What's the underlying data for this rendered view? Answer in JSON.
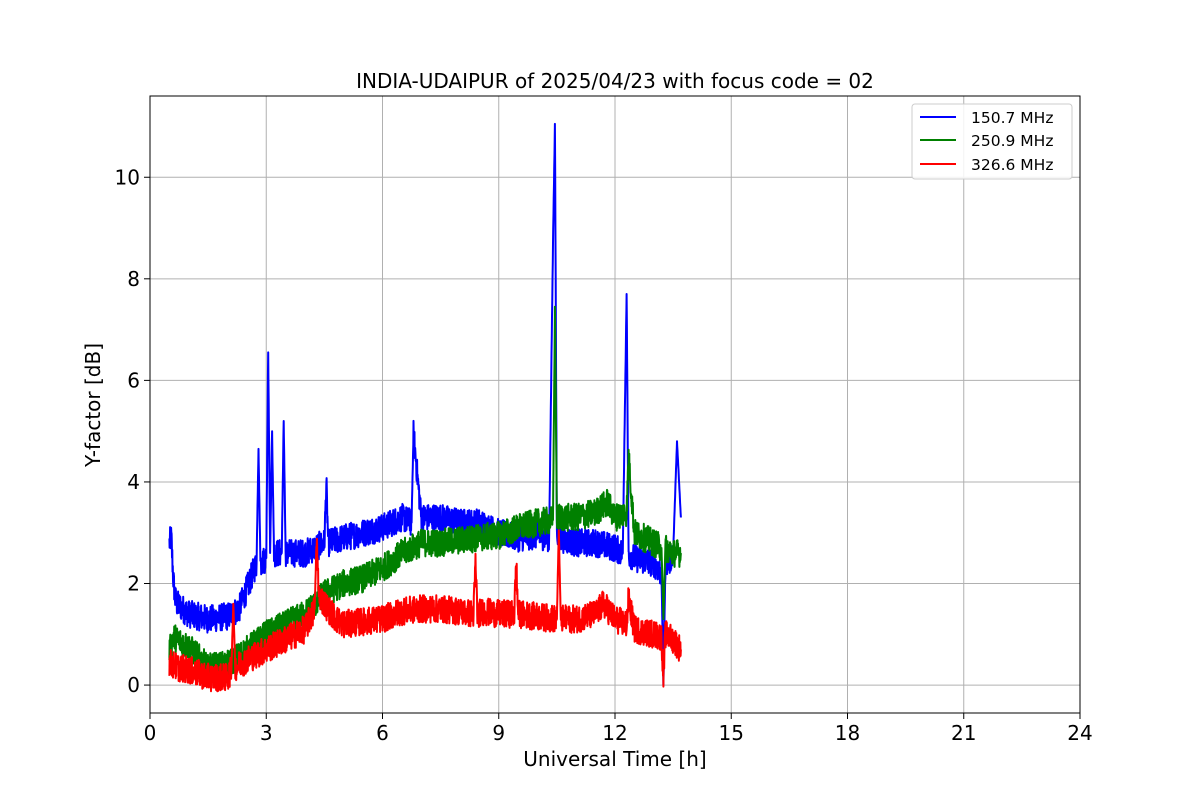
{
  "chart_data": {
    "type": "line",
    "title": "INDIA-UDAIPUR of 2025/04/23 with focus code = 02",
    "xlabel": "Universal Time [h]",
    "ylabel": "Y-factor [dB]",
    "xlim": [
      0,
      24
    ],
    "ylim": [
      -0.55,
      11.6
    ],
    "x_ticks": [
      0,
      3,
      6,
      9,
      12,
      15,
      18,
      21,
      24
    ],
    "x_tick_labels": [
      "0",
      "3",
      "6",
      "9",
      "12",
      "15",
      "18",
      "21",
      "24"
    ],
    "y_ticks": [
      0,
      2,
      4,
      6,
      8,
      10
    ],
    "y_tick_labels": [
      "0",
      "2",
      "4",
      "6",
      "8",
      "10"
    ],
    "grid": true,
    "legend_position": "top-right",
    "series": [
      {
        "name": "150.7 MHz",
        "color": "#0000ff",
        "x": [
          0.5,
          0.55,
          0.6,
          0.65,
          0.7,
          1.0,
          1.5,
          2.0,
          2.3,
          2.6,
          2.75,
          2.8,
          2.85,
          3.0,
          3.05,
          3.1,
          3.15,
          3.2,
          3.4,
          3.45,
          3.5,
          4.0,
          4.5,
          4.55,
          4.6,
          5.0,
          5.5,
          6.0,
          6.5,
          6.75,
          6.8,
          7.0,
          7.5,
          8.0,
          8.5,
          9.0,
          9.5,
          10.0,
          10.3,
          10.4,
          10.45,
          10.5,
          10.55,
          11.0,
          11.5,
          12.0,
          12.2,
          12.3,
          12.35,
          12.5,
          13.0,
          13.2,
          13.25,
          13.3,
          13.5,
          13.6,
          13.7
        ],
        "y": [
          2.8,
          2.9,
          2.1,
          1.7,
          1.6,
          1.4,
          1.3,
          1.35,
          1.5,
          2.1,
          2.4,
          4.65,
          2.4,
          2.5,
          6.55,
          2.6,
          5.0,
          2.6,
          2.6,
          5.2,
          2.6,
          2.6,
          2.8,
          3.95,
          2.8,
          2.9,
          3.0,
          3.1,
          3.3,
          3.2,
          4.95,
          3.3,
          3.3,
          3.2,
          3.2,
          3.0,
          2.9,
          2.95,
          2.9,
          8.7,
          11.05,
          3.0,
          2.9,
          2.8,
          2.8,
          2.7,
          2.6,
          7.7,
          2.6,
          2.5,
          2.4,
          2.2,
          0.0,
          2.3,
          2.6,
          4.8,
          3.3
        ]
      },
      {
        "name": "250.9 MHz",
        "color": "#008000",
        "x": [
          0.5,
          0.6,
          1.0,
          1.5,
          2.0,
          2.5,
          3.0,
          3.5,
          4.0,
          4.5,
          5.0,
          5.5,
          6.0,
          6.5,
          7.0,
          7.5,
          8.0,
          8.5,
          9.0,
          9.5,
          10.0,
          10.4,
          10.45,
          10.5,
          10.55,
          11.0,
          11.5,
          11.8,
          12.0,
          12.3,
          12.35,
          12.5,
          13.0,
          13.2,
          13.25,
          13.3,
          13.5,
          13.7
        ],
        "y": [
          0.65,
          0.95,
          0.75,
          0.35,
          0.4,
          0.7,
          1.0,
          1.2,
          1.4,
          1.8,
          2.0,
          2.1,
          2.3,
          2.6,
          2.8,
          2.8,
          2.85,
          2.9,
          2.95,
          3.1,
          3.2,
          3.25,
          7.45,
          3.3,
          3.3,
          3.3,
          3.4,
          3.6,
          3.3,
          3.4,
          4.5,
          3.0,
          2.8,
          2.7,
          1.3,
          2.7,
          2.6,
          2.6
        ]
      },
      {
        "name": "326.6 MHz",
        "color": "#ff0000",
        "x": [
          0.5,
          0.7,
          1.0,
          1.5,
          2.0,
          2.1,
          2.15,
          2.2,
          2.5,
          3.0,
          3.5,
          4.0,
          4.25,
          4.3,
          4.35,
          4.5,
          4.8,
          5.0,
          5.5,
          6.0,
          6.5,
          7.0,
          7.5,
          8.0,
          8.35,
          8.4,
          8.45,
          8.6,
          9.0,
          9.4,
          9.45,
          9.5,
          10.0,
          10.5,
          10.55,
          10.6,
          11.0,
          11.5,
          11.7,
          12.0,
          12.3,
          12.35,
          12.5,
          13.0,
          13.2,
          13.25,
          13.3,
          13.5,
          13.7
        ],
        "y": [
          0.45,
          0.35,
          0.3,
          0.15,
          0.15,
          0.3,
          1.6,
          0.35,
          0.5,
          0.7,
          0.9,
          1.1,
          1.5,
          2.9,
          1.8,
          1.6,
          1.3,
          1.2,
          1.25,
          1.3,
          1.45,
          1.5,
          1.5,
          1.45,
          1.4,
          2.4,
          1.4,
          1.45,
          1.4,
          1.4,
          2.4,
          1.4,
          1.35,
          1.3,
          3.05,
          1.3,
          1.3,
          1.4,
          1.6,
          1.3,
          1.2,
          1.7,
          1.1,
          1.0,
          0.95,
          0.15,
          1.0,
          0.9,
          0.7
        ]
      }
    ]
  }
}
